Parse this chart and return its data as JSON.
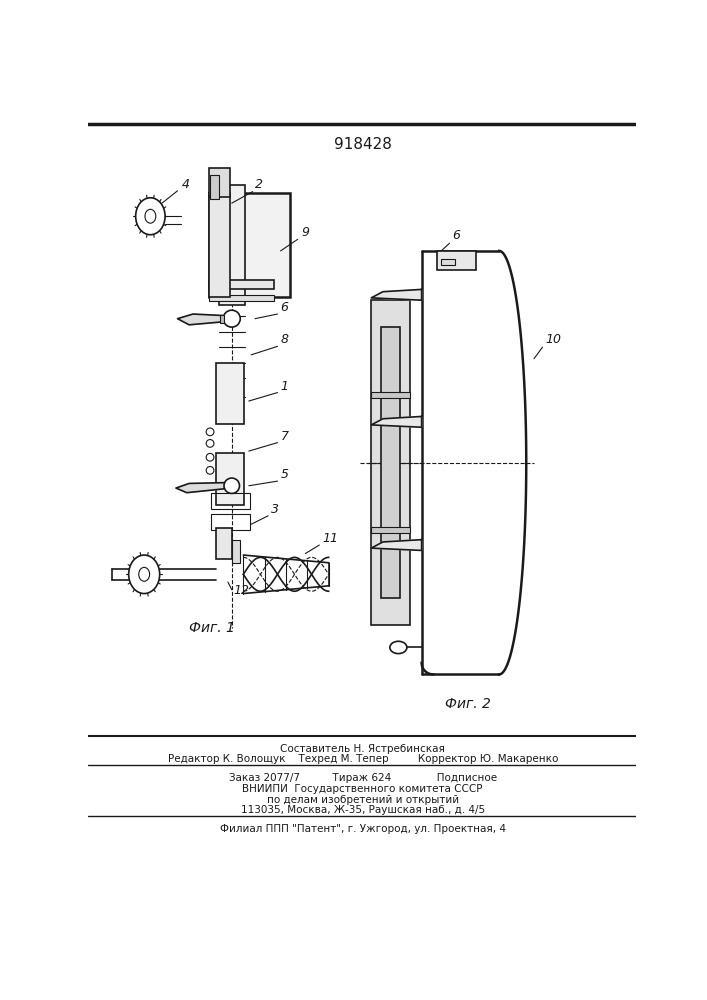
{
  "title": "918428",
  "fig1_label": "Фиг. 1",
  "fig2_label": "Фиг. 2",
  "background_color": "#ffffff",
  "line_color": "#1a1a1a",
  "footer_lines": [
    "Составитель Н. Ястребинская",
    "Редактор К. Волощук    Техред М. Тепер         Корректор Ю. Макаренко",
    "Заказ 2077/7          Тираж 624              Подписное",
    "ВНИИПИ  Государственного комитета СССР",
    "по делам изобретений и открытий",
    "113035, Москва, Ж-35, Раушская наб., д. 4/5",
    "Филиал ППП \"Патент\", г. Ужгород, ул. Проектная, 4"
  ]
}
